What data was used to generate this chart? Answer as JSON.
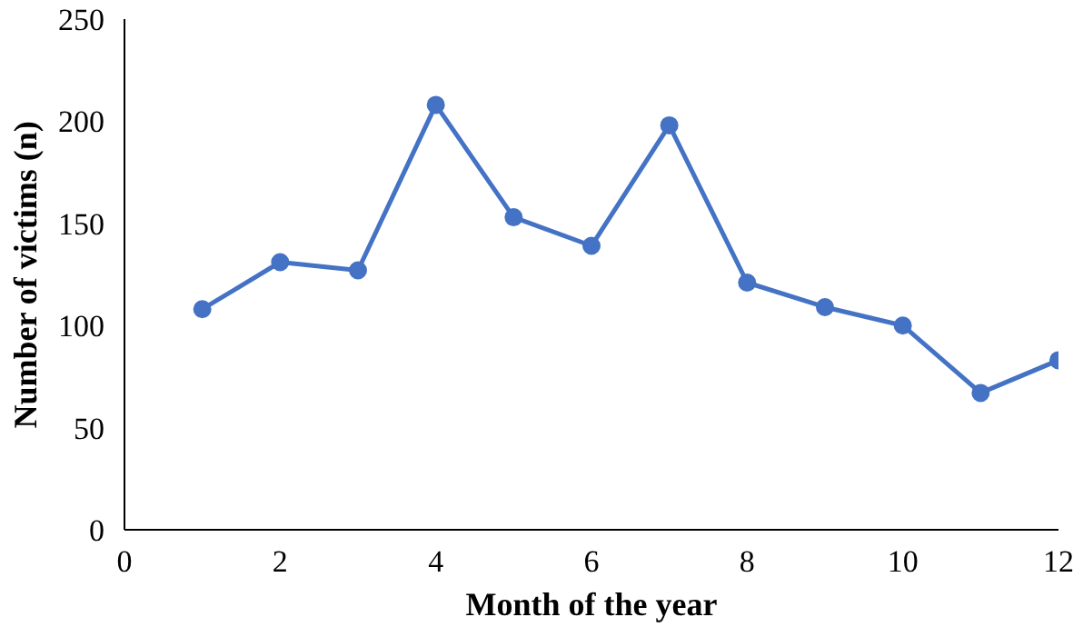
{
  "chart_data": {
    "type": "line",
    "xlabel": "Month of the year",
    "ylabel": "Number of victims (n)",
    "x": [
      1,
      2,
      3,
      4,
      5,
      6,
      7,
      8,
      9,
      10,
      11,
      12
    ],
    "series": [
      {
        "color": "#4472c4",
        "values": [
          108,
          131,
          127,
          208,
          153,
          139,
          198,
          121,
          109,
          100,
          67,
          83
        ]
      }
    ],
    "xlim": [
      0,
      12
    ],
    "xticks": [
      0,
      2,
      4,
      6,
      8,
      10,
      12
    ],
    "ylim": [
      0,
      250
    ],
    "yticks": [
      0,
      50,
      100,
      150,
      200,
      250
    ],
    "grid": false,
    "marker": "circle",
    "line_style": "solid"
  }
}
